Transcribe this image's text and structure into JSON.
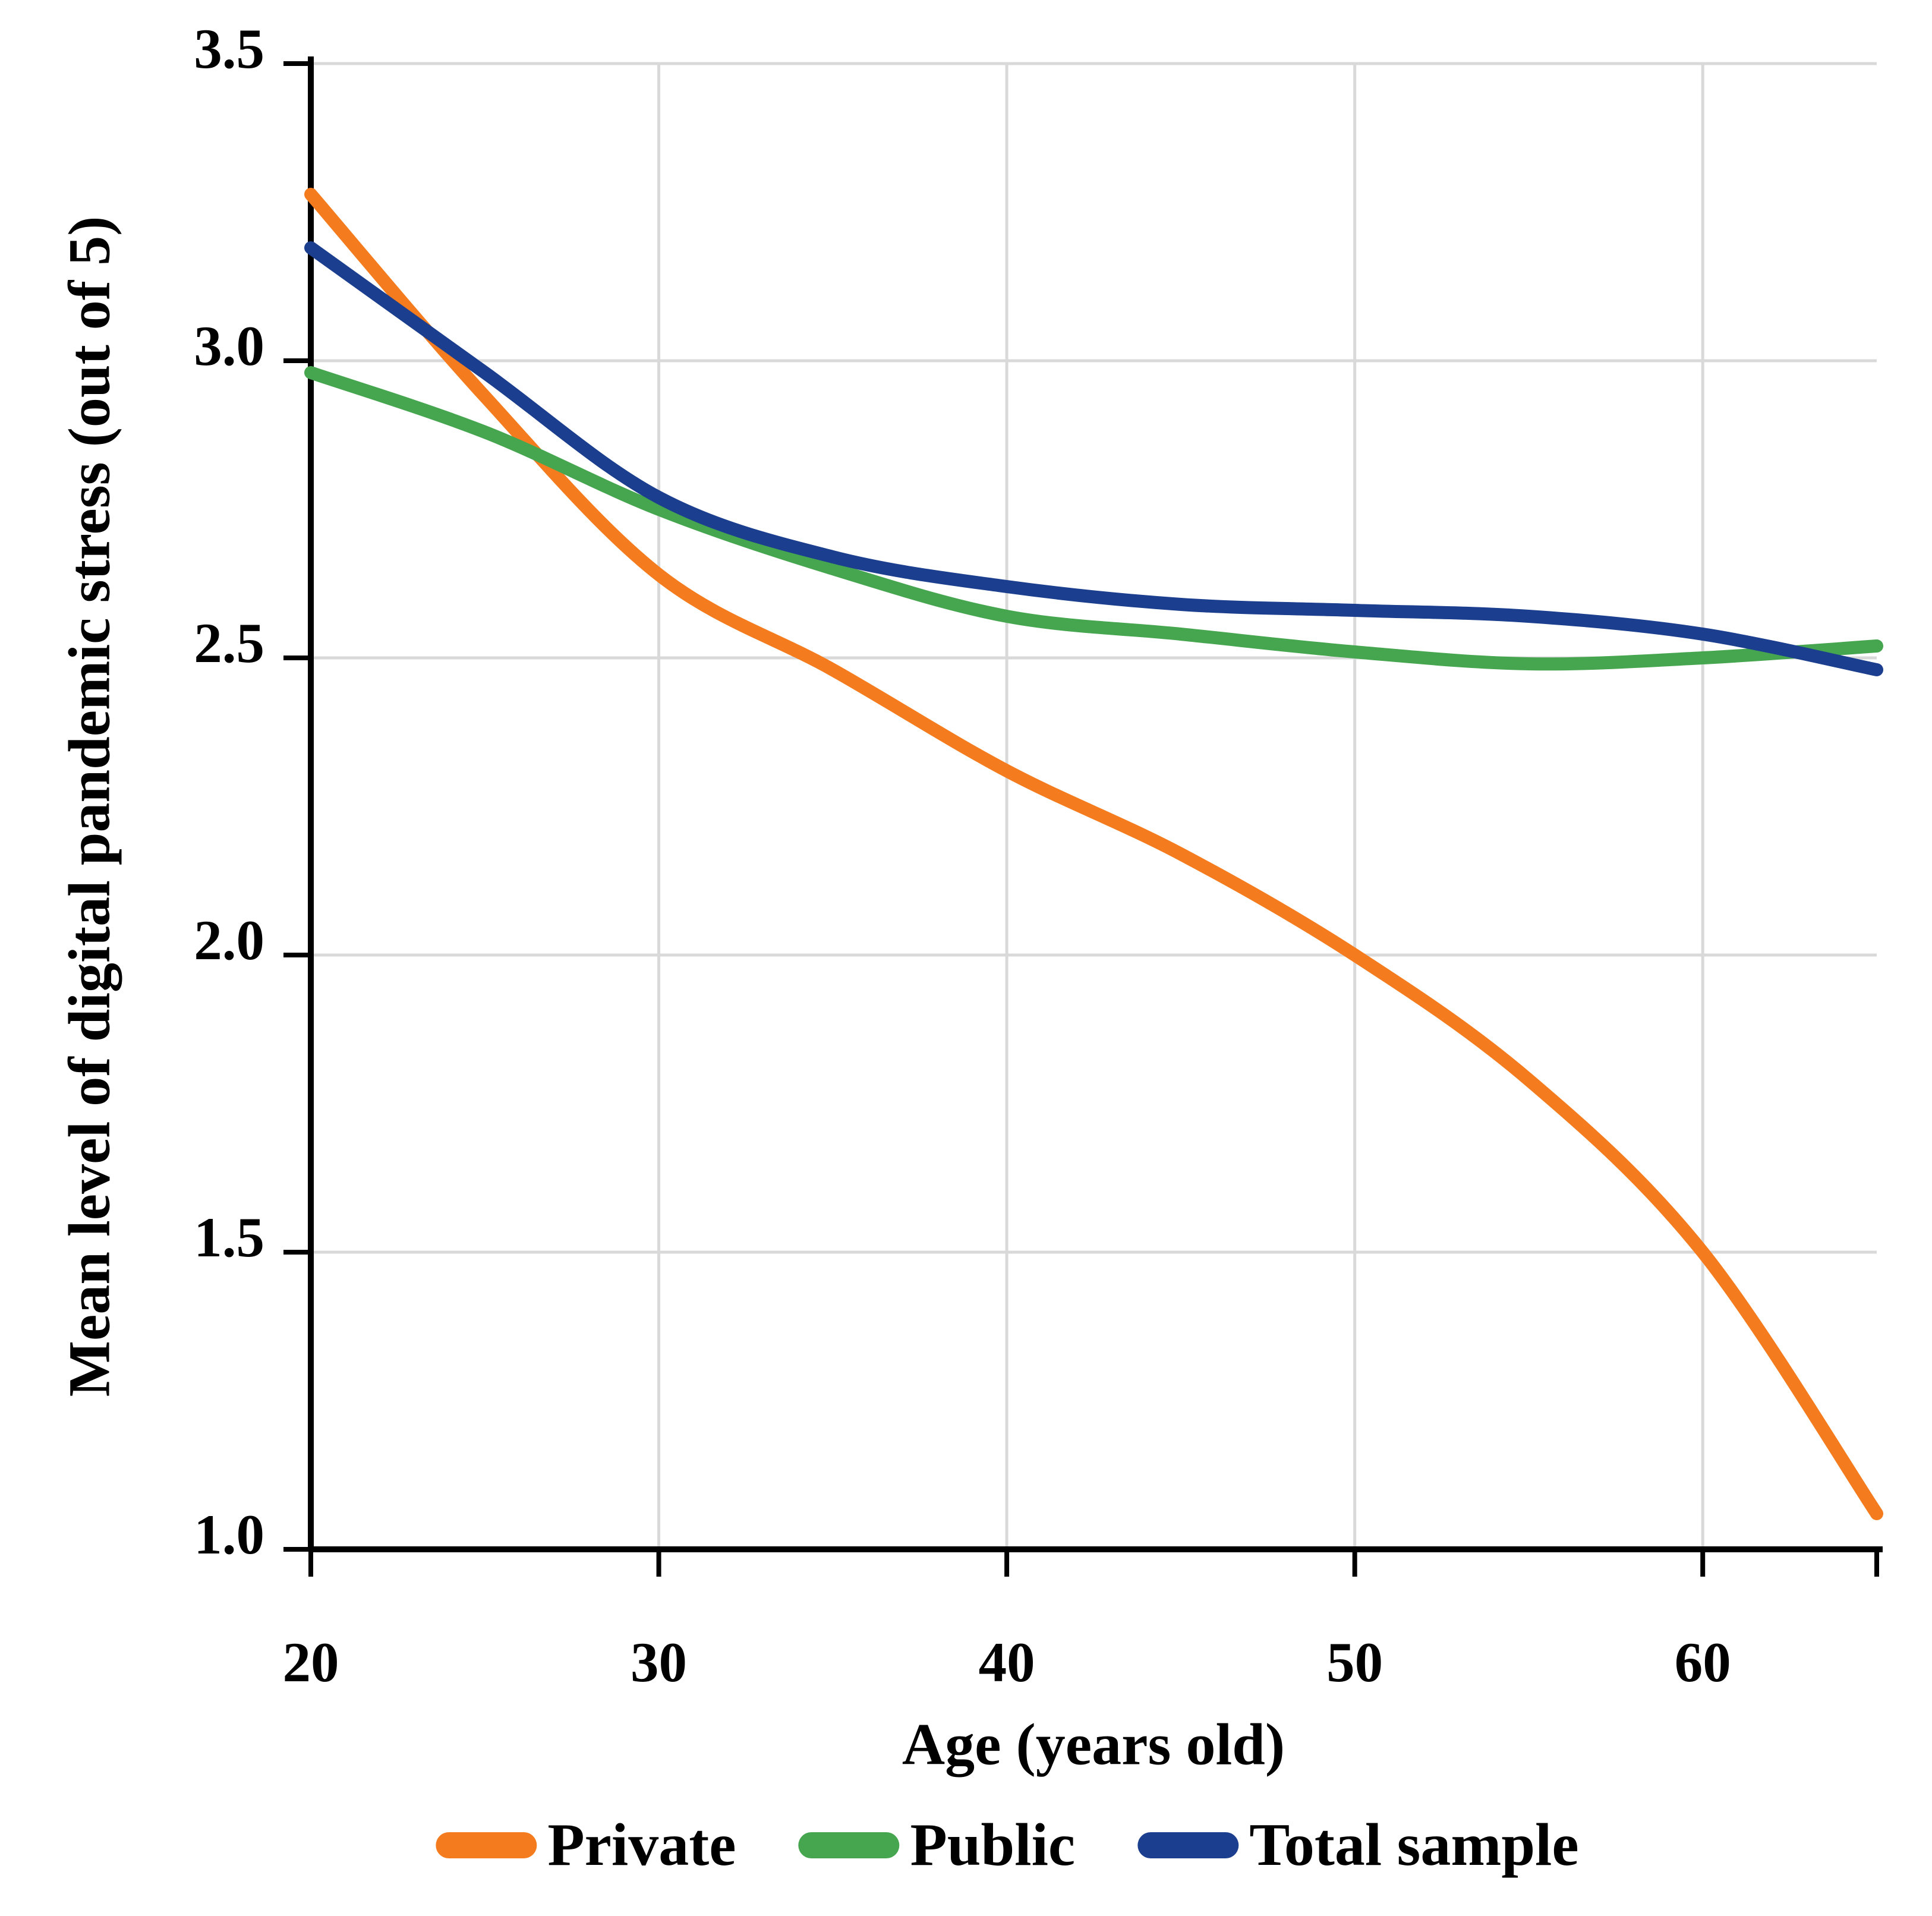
{
  "chart_data": {
    "type": "line",
    "title": "",
    "xlabel": "Age (years old)",
    "ylabel": "Mean level of digital pandemic stress (out of 5)",
    "xlim": [
      20,
      65
    ],
    "ylim": [
      1.0,
      3.5
    ],
    "x_ticks": [
      20,
      30,
      40,
      50,
      60
    ],
    "y_ticks": [
      1.0,
      1.5,
      2.0,
      2.5,
      3.0,
      3.5
    ],
    "grid": true,
    "legend_position": "bottom",
    "x": [
      20,
      25,
      30,
      35,
      40,
      45,
      50,
      55,
      60,
      65
    ],
    "series": [
      {
        "name": "Private",
        "color": "#F57C1E",
        "values": [
          3.28,
          2.94,
          2.64,
          2.48,
          2.31,
          2.17,
          2.0,
          1.79,
          1.5,
          1.06
        ]
      },
      {
        "name": "Public",
        "color": "#46A64F",
        "values": [
          2.98,
          2.88,
          2.75,
          2.65,
          2.57,
          2.54,
          2.51,
          2.49,
          2.5,
          2.52
        ]
      },
      {
        "name": "Total sample",
        "color": "#1B3E8E",
        "values": [
          3.19,
          2.98,
          2.77,
          2.67,
          2.62,
          2.59,
          2.58,
          2.57,
          2.54,
          2.48
        ]
      }
    ]
  },
  "colors": {
    "axis": "#000000",
    "grid": "#D9D9D9",
    "background": "#FFFFFF"
  }
}
